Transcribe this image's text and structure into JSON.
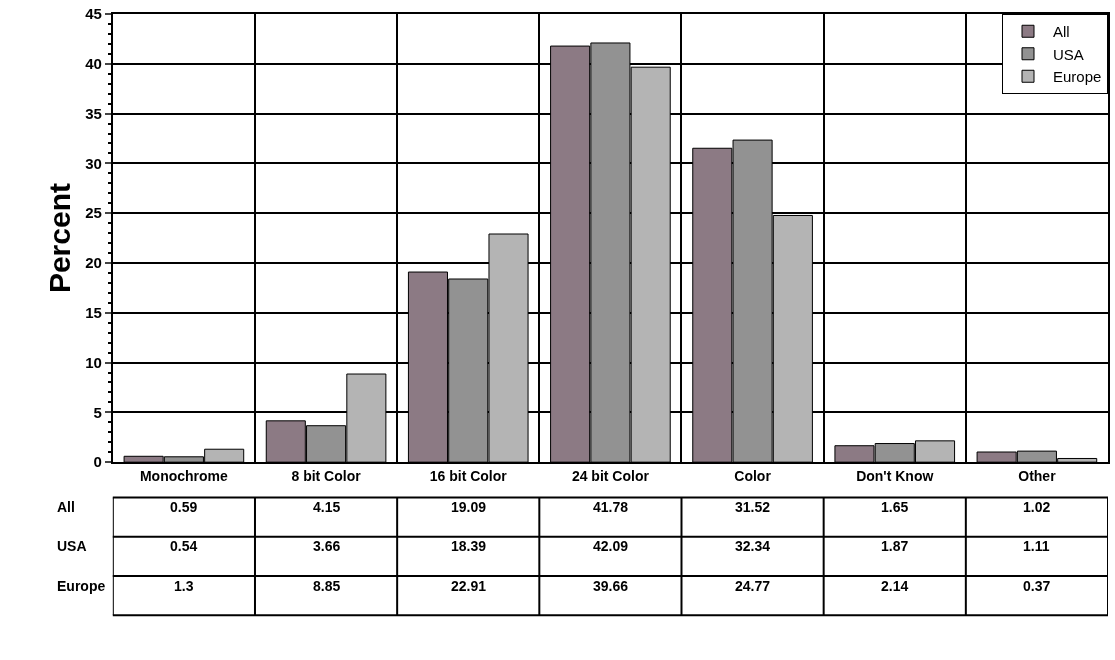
{
  "chart_data": {
    "type": "bar",
    "ylabel": "Percent",
    "categories": [
      "Monochrome",
      "8 bit Color",
      "16 bit Color",
      "24 bit Color",
      "Color",
      "Don't Know",
      "Other"
    ],
    "series": [
      {
        "name": "All",
        "color": "#8c7a84",
        "values": [
          0.59,
          4.15,
          19.09,
          41.78,
          31.52,
          1.65,
          1.02
        ]
      },
      {
        "name": "USA",
        "color": "#929292",
        "values": [
          0.54,
          3.66,
          18.39,
          42.09,
          32.34,
          1.87,
          1.11
        ]
      },
      {
        "name": "Europe",
        "color": "#b4b4b4",
        "values": [
          1.3,
          8.85,
          22.91,
          39.66,
          24.77,
          2.14,
          0.37
        ]
      }
    ],
    "ylim": [
      0,
      45
    ],
    "yticks": [
      0,
      5,
      10,
      15,
      20,
      25,
      30,
      35,
      40,
      45
    ],
    "grid": true,
    "legend": "top right",
    "data_labels": true
  }
}
